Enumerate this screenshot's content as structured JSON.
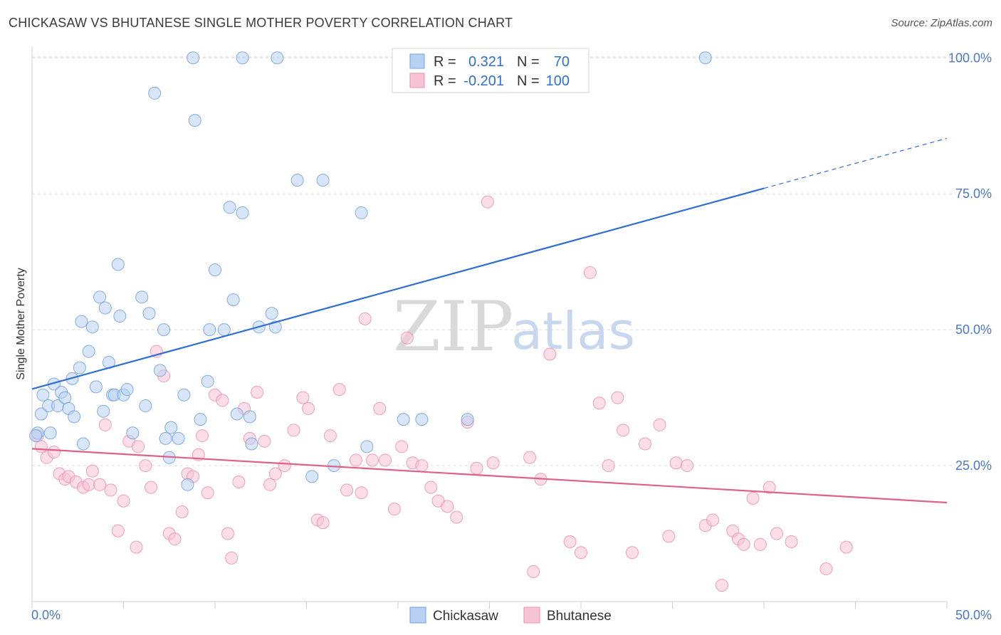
{
  "title": "CHICKASAW VS BHUTANESE SINGLE MOTHER POVERTY CORRELATION CHART",
  "source": "Source: ZipAtlas.com",
  "watermark": {
    "zip": "ZIP",
    "atlas": "atlas"
  },
  "colors": {
    "chickasaw": "#6fa0e0",
    "chickasaw_fill": "#b8d1f3",
    "bhutanese": "#ee8fae",
    "bhutanese_fill": "#f7c3d4",
    "trend_blue": "#2f6fd0",
    "trend_pink": "#e0608a",
    "axis_text": "#4a78c8"
  },
  "legend_top": {
    "rows": [
      {
        "r_label": "R =",
        "r_value": "0.321",
        "n_label": "N =",
        "n_value": "70"
      },
      {
        "r_label": "R =",
        "r_value": "-0.201",
        "n_label": "N =",
        "n_value": "100"
      }
    ]
  },
  "legend_bottom": [
    "Chickasaw",
    "Bhutanese"
  ],
  "chart_data": {
    "type": "scatter",
    "title": "CHICKASAW VS BHUTANESE SINGLE MOTHER POVERTY CORRELATION CHART",
    "xlabel": "",
    "ylabel": "Single Mother Poverty",
    "xlim": [
      0,
      50
    ],
    "ylim": [
      0,
      102
    ],
    "x_tick_labels": [
      "0.0%",
      "50.0%"
    ],
    "y_ticks": [
      25,
      50,
      75,
      100
    ],
    "y_tick_labels": [
      "25.0%",
      "50.0%",
      "75.0%",
      "100.0%"
    ],
    "grid": "horizontal dashed",
    "legend_placement": "top-center",
    "series": [
      {
        "name": "Chickasaw",
        "r": 0.321,
        "n": 70,
        "trend": {
          "x0": 0,
          "y0": 39.1,
          "x1": 40,
          "y1": 76.0,
          "dashed_to_x": 50,
          "dashed_to_y": 85.2
        },
        "points": [
          [
            0.3,
            31
          ],
          [
            0.5,
            34.5
          ],
          [
            0.6,
            38
          ],
          [
            0.9,
            36
          ],
          [
            1.0,
            31
          ],
          [
            1.2,
            40
          ],
          [
            1.4,
            36
          ],
          [
            1.6,
            38.5
          ],
          [
            1.8,
            37.5
          ],
          [
            2.0,
            35.5
          ],
          [
            2.2,
            41
          ],
          [
            2.3,
            34
          ],
          [
            2.6,
            43
          ],
          [
            2.7,
            51.5
          ],
          [
            2.8,
            29
          ],
          [
            3.1,
            46
          ],
          [
            3.3,
            50.5
          ],
          [
            3.5,
            39.5
          ],
          [
            3.7,
            56
          ],
          [
            3.9,
            35
          ],
          [
            4.0,
            54
          ],
          [
            4.2,
            44
          ],
          [
            4.4,
            38
          ],
          [
            4.5,
            38
          ],
          [
            4.7,
            62
          ],
          [
            4.8,
            52.5
          ],
          [
            5.0,
            38
          ],
          [
            5.2,
            39
          ],
          [
            5.5,
            31
          ],
          [
            6.0,
            56
          ],
          [
            6.2,
            36
          ],
          [
            6.4,
            53
          ],
          [
            6.7,
            93.5
          ],
          [
            7.0,
            42.5
          ],
          [
            7.2,
            50
          ],
          [
            7.3,
            30
          ],
          [
            7.5,
            26.5
          ],
          [
            7.6,
            32
          ],
          [
            8.0,
            30
          ],
          [
            8.3,
            38
          ],
          [
            8.5,
            21.5
          ],
          [
            8.8,
            100
          ],
          [
            8.9,
            88.5
          ],
          [
            9.2,
            33.5
          ],
          [
            9.6,
            40.5
          ],
          [
            9.7,
            50
          ],
          [
            10.0,
            61
          ],
          [
            10.5,
            50
          ],
          [
            10.8,
            72.5
          ],
          [
            11.0,
            55.5
          ],
          [
            11.2,
            34.5
          ],
          [
            11.5,
            100
          ],
          [
            11.5,
            71.5
          ],
          [
            11.9,
            34
          ],
          [
            12.0,
            29
          ],
          [
            12.4,
            50.5
          ],
          [
            13.1,
            53
          ],
          [
            13.3,
            50.5
          ],
          [
            13.4,
            100
          ],
          [
            14.5,
            77.5
          ],
          [
            15.3,
            23
          ],
          [
            15.9,
            77.5
          ],
          [
            16.5,
            25
          ],
          [
            18.0,
            71.5
          ],
          [
            18.3,
            28.5
          ],
          [
            20.3,
            33.5
          ],
          [
            21.3,
            33.5
          ],
          [
            23.8,
            33.5
          ],
          [
            36.8,
            100
          ],
          [
            0.2,
            30.5
          ]
        ]
      },
      {
        "name": "Bhutanese",
        "r": -0.201,
        "n": 100,
        "trend": {
          "x0": 0,
          "y0": 28.1,
          "x1": 50,
          "y1": 18.2
        },
        "points": [
          [
            0.3,
            30.5
          ],
          [
            0.5,
            28.5
          ],
          [
            0.8,
            26.5
          ],
          [
            1.2,
            27.5
          ],
          [
            1.5,
            23.5
          ],
          [
            1.8,
            22.5
          ],
          [
            2.0,
            23
          ],
          [
            2.4,
            22
          ],
          [
            2.8,
            21
          ],
          [
            3.1,
            21.5
          ],
          [
            3.3,
            24
          ],
          [
            3.7,
            21.5
          ],
          [
            4.0,
            32.5
          ],
          [
            4.3,
            20.5
          ],
          [
            4.7,
            13
          ],
          [
            5.0,
            18.5
          ],
          [
            5.3,
            29.5
          ],
          [
            5.7,
            10
          ],
          [
            5.8,
            28.5
          ],
          [
            6.2,
            25
          ],
          [
            6.5,
            21
          ],
          [
            6.8,
            46
          ],
          [
            7.2,
            41.5
          ],
          [
            7.5,
            12.5
          ],
          [
            7.8,
            11.5
          ],
          [
            8.2,
            16.5
          ],
          [
            8.5,
            23.5
          ],
          [
            8.8,
            23
          ],
          [
            9.1,
            27
          ],
          [
            9.3,
            30.5
          ],
          [
            9.6,
            20
          ],
          [
            10.0,
            38
          ],
          [
            10.4,
            37
          ],
          [
            10.7,
            12.5
          ],
          [
            10.9,
            8
          ],
          [
            11.3,
            22
          ],
          [
            11.6,
            35.5
          ],
          [
            11.9,
            30
          ],
          [
            12.3,
            38.5
          ],
          [
            12.7,
            29.5
          ],
          [
            13.0,
            21.5
          ],
          [
            13.3,
            23.5
          ],
          [
            13.8,
            25
          ],
          [
            14.3,
            31.5
          ],
          [
            14.8,
            37.5
          ],
          [
            15.1,
            35.5
          ],
          [
            15.6,
            15
          ],
          [
            15.9,
            14.5
          ],
          [
            16.3,
            30.5
          ],
          [
            16.8,
            39
          ],
          [
            17.2,
            20.5
          ],
          [
            17.7,
            26
          ],
          [
            18.0,
            20
          ],
          [
            18.6,
            26
          ],
          [
            19.0,
            35.5
          ],
          [
            19.3,
            26
          ],
          [
            19.8,
            17
          ],
          [
            20.2,
            28.5
          ],
          [
            20.5,
            48.5
          ],
          [
            20.8,
            25.5
          ],
          [
            21.3,
            25
          ],
          [
            21.8,
            21
          ],
          [
            22.2,
            18.5
          ],
          [
            22.7,
            17.5
          ],
          [
            23.2,
            15.5
          ],
          [
            23.8,
            33
          ],
          [
            24.3,
            24.5
          ],
          [
            24.9,
            73.5
          ],
          [
            25.2,
            25.5
          ],
          [
            27.2,
            26.5
          ],
          [
            27.4,
            5.5
          ],
          [
            27.8,
            22.5
          ],
          [
            28.3,
            45.5
          ],
          [
            29.4,
            11
          ],
          [
            30.0,
            9
          ],
          [
            30.5,
            60.5
          ],
          [
            31.0,
            36.5
          ],
          [
            31.5,
            25
          ],
          [
            32.0,
            37.5
          ],
          [
            32.3,
            31.5
          ],
          [
            32.8,
            9
          ],
          [
            33.5,
            29
          ],
          [
            34.3,
            32.5
          ],
          [
            34.8,
            12
          ],
          [
            35.2,
            25.5
          ],
          [
            35.8,
            25
          ],
          [
            36.8,
            14
          ],
          [
            37.2,
            15
          ],
          [
            37.7,
            3
          ],
          [
            38.3,
            13
          ],
          [
            38.6,
            11.5
          ],
          [
            38.9,
            10.5
          ],
          [
            39.4,
            19
          ],
          [
            39.8,
            10.5
          ],
          [
            40.3,
            21
          ],
          [
            40.7,
            12.5
          ],
          [
            41.5,
            11
          ],
          [
            43.4,
            6
          ],
          [
            44.5,
            10
          ],
          [
            18.2,
            52
          ]
        ]
      }
    ]
  }
}
